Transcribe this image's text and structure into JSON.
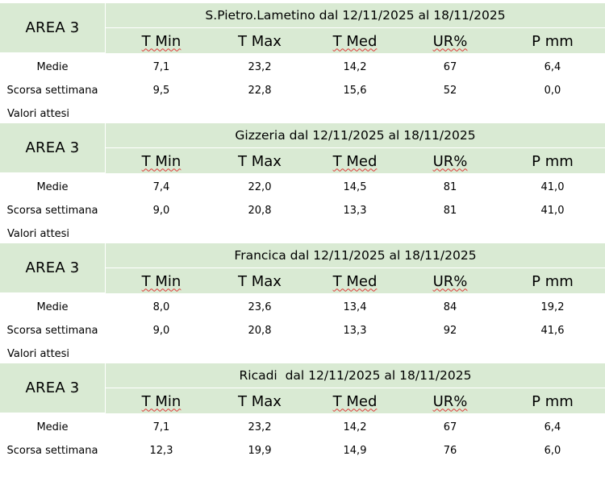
{
  "columns": [
    "T Min",
    "T Max",
    "T Med",
    "UR%",
    "P mm"
  ],
  "tables": [
    {
      "area": "AREA 3",
      "title": "S.Pietro.Lametino dal 12/11/2025 al 18/11/2025",
      "rows": [
        {
          "label": "Medie",
          "values": [
            "7,1",
            "23,2",
            "14,2",
            "67",
            "6,4"
          ]
        },
        {
          "label": "Scorsa settimana",
          "values": [
            "9,5",
            "22,8",
            "15,6",
            "52",
            "0,0"
          ]
        }
      ],
      "note": "Valori attesi"
    },
    {
      "area": "AREA 3",
      "title": "Gizzeria dal 12/11/2025 al 18/11/2025",
      "rows": [
        {
          "label": "Medie",
          "values": [
            "7,4",
            "22,0",
            "14,5",
            "81",
            "41,0"
          ]
        },
        {
          "label": "Scorsa settimana",
          "values": [
            "9,0",
            "20,8",
            "13,3",
            "81",
            "41,0"
          ]
        }
      ],
      "note": "Valori attesi"
    },
    {
      "area": "AREA 3",
      "title": "Francica dal 12/11/2025 al 18/11/2025",
      "rows": [
        {
          "label": "Medie",
          "values": [
            "8,0",
            "23,6",
            "13,4",
            "84",
            "19,2"
          ]
        },
        {
          "label": "Scorsa settimana",
          "values": [
            "9,0",
            "20,8",
            "13,3",
            "92",
            "41,6"
          ]
        }
      ],
      "note": "Valori attesi"
    },
    {
      "area": "AREA 3",
      "title": "Ricadi  dal 12/11/2025 al 18/11/2025",
      "rows": [
        {
          "label": "Medie",
          "values": [
            "7,1",
            "23,2",
            "14,2",
            "67",
            "6,4"
          ]
        },
        {
          "label": "Scorsa settimana",
          "values": [
            "12,3",
            "19,9",
            "14,9",
            "76",
            "6,0"
          ]
        }
      ],
      "note": ""
    }
  ],
  "colors": {
    "header_fill": "#d9ead3",
    "spellcheck_underline": "#e03a3a"
  }
}
